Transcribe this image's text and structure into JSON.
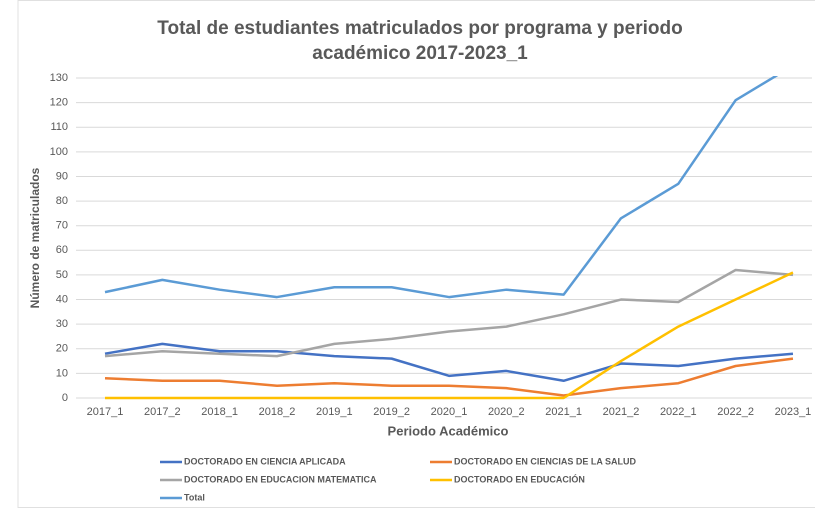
{
  "chart_data": {
    "type": "line",
    "title": "Total de estudiantes matriculados por programa y periodo académico 2017-2023_1",
    "x_label": "Periodo Académico",
    "y_label": "Número de matriculados",
    "categories": [
      "2017_1",
      "2017_2",
      "2018_1",
      "2018_2",
      "2019_1",
      "2019_2",
      "2020_1",
      "2020_2",
      "2021_1",
      "2021_2",
      "2022_1",
      "2022_2",
      "2023_1"
    ],
    "series": [
      {
        "name": "DOCTORADO EN CIENCIA APLICADA",
        "color": "#4472c4",
        "values": [
          18,
          22,
          19,
          19,
          17,
          16,
          9,
          11,
          7,
          14,
          13,
          16,
          18
        ]
      },
      {
        "name": "DOCTORADO EN CIENCIAS DE LA SALUD",
        "color": "#ed7d31",
        "values": [
          8,
          7,
          7,
          5,
          6,
          5,
          5,
          4,
          1,
          4,
          6,
          13,
          16
        ]
      },
      {
        "name": "DOCTORADO EN EDUCACION MATEMATICA",
        "color": "#a5a5a5",
        "values": [
          17,
          19,
          18,
          17,
          22,
          24,
          27,
          29,
          34,
          40,
          39,
          52,
          50
        ]
      },
      {
        "name": "DOCTORADO EN EDUCACIÓN",
        "color": "#ffc000",
        "values": [
          0,
          0,
          0,
          0,
          0,
          0,
          0,
          0,
          0,
          15,
          29,
          40,
          51
        ]
      },
      {
        "name": "Total",
        "color": "#5b9bd5",
        "values": [
          43,
          48,
          44,
          41,
          45,
          45,
          41,
          44,
          42,
          73,
          87,
          121,
          135
        ]
      }
    ],
    "ylim": [
      0,
      130
    ],
    "yticks": [
      0,
      10,
      20,
      30,
      40,
      50,
      60,
      70,
      80,
      90,
      100,
      110,
      120,
      130
    ],
    "grid": true,
    "legend": "bottom"
  }
}
